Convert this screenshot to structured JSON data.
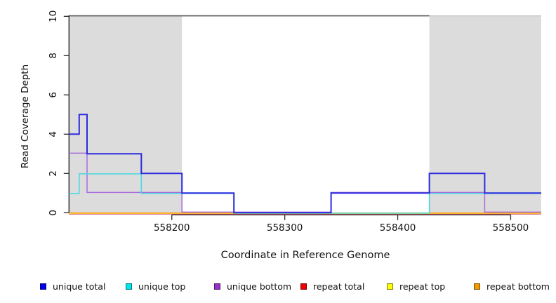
{
  "figure": {
    "background": "#ffffff",
    "plot_bg": "#ffffff",
    "shaded_region_color": "#dcdcdc",
    "axis_color": "#2a2a2a",
    "text_color": "#111111"
  },
  "chart_data": {
    "type": "line",
    "subtype": "step-coverage",
    "title": "",
    "xlabel": "Coordinate in Reference Genome",
    "ylabel": "Read Coverage Depth",
    "xlim": [
      558109,
      558527
    ],
    "ylim": [
      0,
      10
    ],
    "x_ticks": [
      558200,
      558300,
      558400,
      558500
    ],
    "y_ticks": [
      0,
      2,
      4,
      6,
      8,
      10
    ],
    "grid": false,
    "legend_position": "bottom",
    "shaded_regions": [
      {
        "start": 558109,
        "end": 558209
      },
      {
        "start": 558428,
        "end": 558527
      }
    ],
    "cap_line_depth": 10,
    "cap_line_span": [
      558109,
      558428
    ],
    "series_end": 558527,
    "series": [
      {
        "name": "unique total",
        "legend_color": "#0000EE",
        "line_color": "#2B2BE0",
        "steps": [
          [
            558109,
            4
          ],
          [
            558118,
            5
          ],
          [
            558125,
            3
          ],
          [
            558173,
            2
          ],
          [
            558209,
            1
          ],
          [
            558255,
            0
          ],
          [
            558341,
            1
          ],
          [
            558428,
            2
          ],
          [
            558477,
            1
          ]
        ]
      },
      {
        "name": "unique top",
        "legend_color": "#00E5EE",
        "line_color": "#45D8DE",
        "steps": [
          [
            558109,
            1
          ],
          [
            558118,
            2
          ],
          [
            558173,
            1
          ],
          [
            558255,
            0
          ],
          [
            558428,
            1
          ]
        ]
      },
      {
        "name": "unique bottom",
        "legend_color": "#9932CC",
        "line_color": "#A86CDB",
        "steps": [
          [
            558109,
            3
          ],
          [
            558125,
            1
          ],
          [
            558209,
            0
          ],
          [
            558341,
            1
          ],
          [
            558477,
            0
          ]
        ]
      },
      {
        "name": "repeat total",
        "legend_color": "#EE0000",
        "line_color": "#D2455E",
        "steps": [
          [
            558109,
            0
          ]
        ]
      },
      {
        "name": "repeat top",
        "legend_color": "#FFFF00",
        "line_color": "#E8DC4A",
        "steps": [
          [
            558109,
            0
          ]
        ]
      },
      {
        "name": "repeat bottom",
        "legend_color": "#EE9A00",
        "line_color": "#FF9D1F",
        "steps": [
          [
            558109,
            0
          ]
        ]
      }
    ]
  },
  "labels": {
    "x_axis_title": "Coordinate in Reference Genome",
    "y_axis_title": "Read Coverage Depth"
  },
  "legend": {
    "items": [
      {
        "label": "unique total"
      },
      {
        "label": "unique top"
      },
      {
        "label": "unique bottom"
      },
      {
        "label": "repeat total"
      },
      {
        "label": "repeat top"
      },
      {
        "label": "repeat bottom"
      }
    ]
  }
}
